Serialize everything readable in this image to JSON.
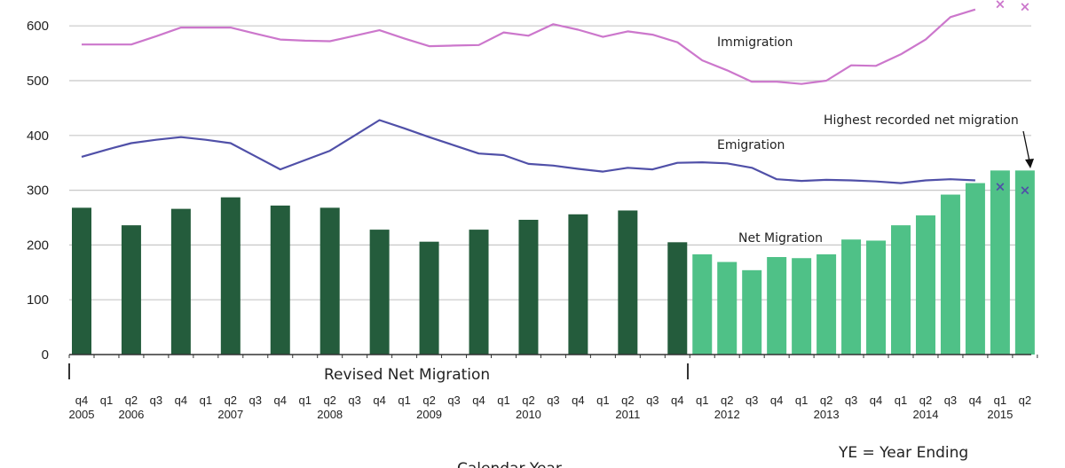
{
  "chart_data": {
    "type": "bar",
    "title": "",
    "xlabel": "Calendar Year",
    "ylabel": "",
    "ylim": [
      0,
      650
    ],
    "yticks": [
      "0",
      "100",
      "200",
      "300",
      "400",
      "500",
      "600"
    ],
    "grid": true,
    "categories": [
      "q4",
      "q1",
      "q2",
      "q3",
      "q4",
      "q1",
      "q2",
      "q3",
      "q4",
      "q1",
      "q2",
      "q3",
      "q4",
      "q1",
      "q2",
      "q3",
      "q4",
      "q1",
      "q2",
      "q3",
      "q4",
      "q1",
      "q2",
      "q3",
      "q4",
      "q1",
      "q2",
      "q3",
      "q4",
      "q1",
      "q2",
      "q3",
      "q4",
      "q1",
      "q2",
      "q3",
      "q4",
      "q1",
      "q2"
    ],
    "years": [
      "2005",
      "",
      "2006",
      "",
      "",
      "",
      "2007",
      "",
      "",
      "",
      "2008",
      "",
      "",
      "",
      "2009",
      "",
      "",
      "",
      "2010",
      "",
      "",
      "",
      "2011",
      "",
      "",
      "",
      "2012",
      "",
      "",
      "",
      "2013",
      "",
      "",
      "",
      "2014",
      "",
      "",
      "2015",
      ""
    ],
    "series": [
      {
        "name": "Revised Net Migration",
        "type": "bar",
        "color": "#245c3c",
        "values": [
          268,
          null,
          236,
          null,
          266,
          null,
          287,
          null,
          272,
          null,
          268,
          null,
          228,
          null,
          206,
          null,
          228,
          null,
          246,
          null,
          256,
          null,
          263,
          null,
          205,
          null,
          null,
          null,
          null,
          null,
          null,
          null,
          null,
          null,
          null,
          null,
          null,
          null,
          null
        ]
      },
      {
        "name": "Net Migration",
        "type": "bar",
        "color": "#4fc187",
        "values": [
          null,
          null,
          null,
          null,
          null,
          null,
          null,
          null,
          null,
          null,
          null,
          null,
          null,
          null,
          null,
          null,
          null,
          null,
          null,
          null,
          null,
          null,
          null,
          null,
          null,
          183,
          169,
          154,
          178,
          176,
          183,
          210,
          208,
          236,
          254,
          292,
          313,
          336,
          336
        ]
      },
      {
        "name": "Immigration",
        "type": "line",
        "color": "#cc77cc",
        "values": [
          566,
          566,
          566,
          581,
          597,
          597,
          597,
          586,
          575,
          573,
          572,
          582,
          592,
          577,
          563,
          564,
          565,
          588,
          582,
          603,
          593,
          580,
          590,
          584,
          570,
          537,
          519,
          498,
          498,
          494,
          500,
          528,
          527,
          548,
          575,
          616,
          630,
          null,
          null
        ],
        "markers": [
          null,
          null,
          null,
          null,
          null,
          null,
          null,
          null,
          null,
          null,
          null,
          null,
          null,
          null,
          null,
          null,
          null,
          null,
          null,
          null,
          null,
          null,
          null,
          null,
          null,
          null,
          null,
          null,
          null,
          null,
          null,
          null,
          null,
          null,
          null,
          null,
          null,
          640,
          635
        ]
      },
      {
        "name": "Emigration",
        "type": "line",
        "color": "#5050a8",
        "values": [
          361,
          374,
          386,
          392,
          397,
          392,
          386,
          362,
          338,
          355,
          372,
          400,
          428,
          413,
          397,
          382,
          367,
          364,
          348,
          345,
          339,
          334,
          341,
          338,
          350,
          351,
          349,
          341,
          320,
          317,
          319,
          318,
          316,
          313,
          318,
          320,
          318,
          null,
          null
        ],
        "markers": [
          null,
          null,
          null,
          null,
          null,
          null,
          null,
          null,
          null,
          null,
          null,
          null,
          null,
          null,
          null,
          null,
          null,
          null,
          null,
          null,
          null,
          null,
          null,
          null,
          null,
          null,
          null,
          null,
          null,
          null,
          null,
          null,
          null,
          null,
          null,
          null,
          null,
          307,
          300
        ]
      }
    ],
    "annotations": {
      "immigration": "Immigration",
      "emigration": "Emigration",
      "net": "Net Migration",
      "revised": "Revised Net Migration",
      "highest": "Highest recorded net migration",
      "ye_note": "YE = Year Ending"
    }
  }
}
